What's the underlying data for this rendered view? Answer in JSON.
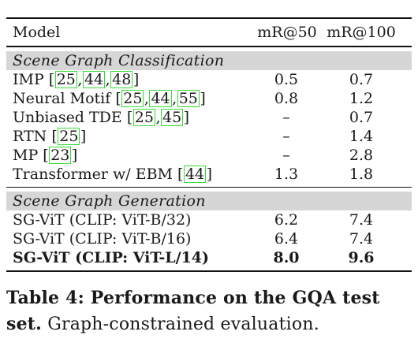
{
  "table": {
    "headers": {
      "model": "Model",
      "mr50": "mR@50",
      "mr100": "mR@100"
    },
    "sections": [
      {
        "title": "Scene Graph Classification",
        "rows": [
          {
            "model": "IMP",
            "cites": [
              "25",
              "44",
              "48"
            ],
            "mr50": "0.5",
            "mr100": "0.7"
          },
          {
            "model": "Neural Motif",
            "cites": [
              "25",
              "44",
              "55"
            ],
            "mr50": "0.8",
            "mr100": "1.2"
          },
          {
            "model": "Unbiased TDE",
            "cites": [
              "25",
              "45"
            ],
            "mr50": "–",
            "mr100": "0.7"
          },
          {
            "model": "RTN",
            "cites": [
              "25"
            ],
            "mr50": "–",
            "mr100": "1.4"
          },
          {
            "model": "MP",
            "cites": [
              "23"
            ],
            "mr50": "–",
            "mr100": "2.8"
          },
          {
            "model": "Transformer w/ EBM",
            "cites": [
              "44"
            ],
            "mr50": "1.3",
            "mr100": "1.8"
          }
        ]
      },
      {
        "title": "Scene Graph Generation",
        "rows": [
          {
            "model": "SG-ViT (CLIP: ViT-B/32)",
            "cites": [],
            "mr50": "6.2",
            "mr100": "7.4"
          },
          {
            "model": "SG-ViT (CLIP: ViT-B/16)",
            "cites": [],
            "mr50": "6.4",
            "mr100": "7.4"
          },
          {
            "model": "SG-ViT (CLIP: ViT-L/14)",
            "cites": [],
            "mr50": "8.0",
            "mr100": "9.6",
            "bold": true
          }
        ]
      }
    ]
  },
  "caption": {
    "title": "Table 4: Performance on the GQA test set.",
    "text": "Graph-constrained evaluation."
  }
}
